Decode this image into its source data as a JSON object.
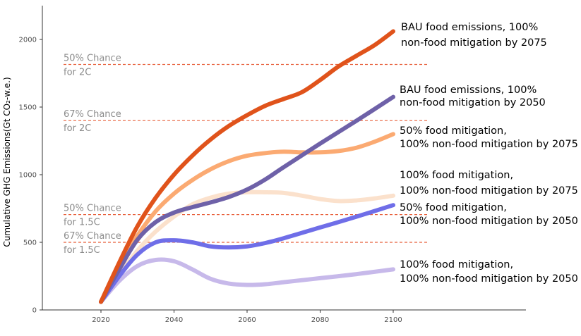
{
  "chart_data": {
    "type": "line",
    "xlabel": "",
    "ylabel": "Cumulative GHG Emissions(Gt CO₂-w.e.)",
    "xlim": [
      2004,
      2114
    ],
    "ylim": [
      0,
      2250
    ],
    "x_ticks": [
      "2020",
      "2040",
      "2060",
      "2080",
      "2100"
    ],
    "y_ticks": [
      "0",
      "500",
      "1000",
      "1500",
      "2000"
    ],
    "grid": false,
    "thresholds": [
      {
        "value": 1815,
        "label_line1": "50% Chance",
        "label_line2": "for 2C",
        "color": "#e8603c"
      },
      {
        "value": 1400,
        "label_line1": "67% Chance",
        "label_line2": "for 2C",
        "color": "#e8603c"
      },
      {
        "value": 705,
        "label_line1": "50% Chance",
        "label_line2": "for 1.5C",
        "color": "#e8603c"
      },
      {
        "value": 500,
        "label_line1": "67% Chance",
        "label_line2": "for 1.5C",
        "color": "#e8603c"
      }
    ],
    "series": [
      {
        "label_line1": "100% food mitigation,",
        "label_line2": "100% non-food mitigation by 2050",
        "color": "#c7b9ea",
        "x": [
          2020,
          2025,
          2030,
          2035,
          2040,
          2045,
          2050,
          2055,
          2060,
          2065,
          2070,
          2080,
          2090,
          2100
        ],
        "y": [
          60,
          215,
          325,
          370,
          360,
          300,
          230,
          195,
          185,
          190,
          205,
          235,
          265,
          300
        ]
      },
      {
        "label_line1": "100% food mitigation,",
        "label_line2": "100% non-food mitigation by 2075",
        "color": "#fbe1cc",
        "x": [
          2020,
          2025,
          2030,
          2035,
          2040,
          2045,
          2050,
          2055,
          2060,
          2065,
          2070,
          2075,
          2080,
          2085,
          2090,
          2095,
          2100
        ],
        "y": [
          60,
          260,
          440,
          580,
          690,
          780,
          830,
          860,
          870,
          870,
          865,
          845,
          820,
          805,
          810,
          825,
          845
        ]
      },
      {
        "label_line1": "50% food mitigation,",
        "label_line2": "100% non-food mitigation by 2050",
        "color": "#6f6ee8",
        "x": [
          2020,
          2025,
          2030,
          2035,
          2040,
          2045,
          2050,
          2055,
          2060,
          2065,
          2070,
          2080,
          2090,
          2100
        ],
        "y": [
          60,
          250,
          410,
          500,
          515,
          500,
          470,
          462,
          470,
          495,
          530,
          610,
          690,
          775
        ]
      },
      {
        "label_line1": "50% food mitigation,",
        "label_line2": "100% non-food mitigation by 2075",
        "color": "#fbaa72",
        "x": [
          2020,
          2025,
          2030,
          2035,
          2040,
          2045,
          2050,
          2055,
          2060,
          2065,
          2070,
          2075,
          2080,
          2085,
          2090,
          2095,
          2100
        ],
        "y": [
          60,
          320,
          550,
          730,
          860,
          960,
          1040,
          1100,
          1140,
          1160,
          1170,
          1165,
          1165,
          1175,
          1200,
          1245,
          1300
        ]
      },
      {
        "label_line1": "BAU food emissions, 100%",
        "label_line2": "non-food mitigation by 2050",
        "color": "#6e61a8",
        "x": [
          2020,
          2025,
          2030,
          2035,
          2040,
          2045,
          2050,
          2055,
          2060,
          2065,
          2070,
          2080,
          2090,
          2100
        ],
        "y": [
          60,
          300,
          520,
          650,
          720,
          760,
          795,
          835,
          890,
          965,
          1055,
          1230,
          1400,
          1575
        ]
      },
      {
        "label_line1": "BAU food emissions, 100%",
        "label_line2": "non-food mitigation by 2075",
        "color": "#e0531b",
        "x": [
          2020,
          2025,
          2030,
          2035,
          2040,
          2045,
          2050,
          2055,
          2060,
          2065,
          2070,
          2075,
          2080,
          2085,
          2090,
          2095,
          2100
        ],
        "y": [
          60,
          350,
          620,
          830,
          1000,
          1140,
          1260,
          1360,
          1440,
          1510,
          1560,
          1610,
          1700,
          1800,
          1880,
          1960,
          2060
        ]
      }
    ]
  }
}
